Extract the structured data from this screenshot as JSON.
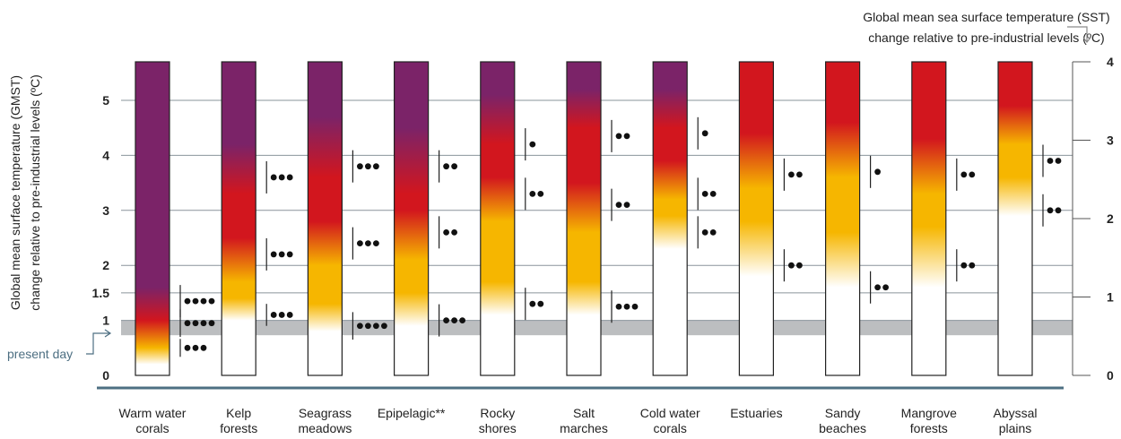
{
  "chart_data": {
    "type": "burning-ember",
    "title": "",
    "ylabel_left": [
      "Global mean surface temperature (GMST)",
      "change relative to pre-industrial levels (ºC)"
    ],
    "ylabel_right": [
      "Global mean sea surface temperature (SST)",
      "change relative to pre-industrial levels (ºC)"
    ],
    "left_ticks": [
      "0",
      "1",
      "1.5",
      "2",
      "3",
      "4",
      "5"
    ],
    "left_tick_values": [
      0,
      1,
      1.5,
      2,
      3,
      4,
      5
    ],
    "right_ticks": [
      "0",
      "1",
      "2",
      "3",
      "4"
    ],
    "right_tick_values": [
      0,
      1,
      2,
      3,
      4
    ],
    "present_day_label": "present day",
    "present_day_gmst_range": [
      0.73,
      1.0
    ],
    "ylim_gmst": [
      0,
      5.7
    ],
    "risk_colors": {
      "undetectable": "#ffffff",
      "moderate": "#f6b600",
      "high": "#d2161e",
      "very_high": "#7b2368"
    },
    "categories": [
      {
        "label": [
          "Warm water",
          "corals"
        ],
        "transitions": [
          {
            "from": "undetectable",
            "to": "moderate",
            "start": 0.2,
            "end": 0.5,
            "confidence": 3,
            "conf_gmst": 0.5
          },
          {
            "from": "moderate",
            "to": "high",
            "start": 0.5,
            "end": 1.0,
            "confidence": 4,
            "conf_gmst": 0.95
          },
          {
            "from": "high",
            "to": "very_high",
            "start": 1.0,
            "end": 1.6,
            "confidence": 4,
            "conf_gmst": 1.35
          }
        ]
      },
      {
        "label": [
          "Kelp",
          "forests"
        ],
        "transitions": [
          {
            "from": "undetectable",
            "to": "moderate",
            "start": 1.0,
            "end": 1.4,
            "confidence": 3,
            "conf_gmst": 1.1
          },
          {
            "from": "moderate",
            "to": "high",
            "start": 1.7,
            "end": 2.5,
            "confidence": 3,
            "conf_gmst": 2.2
          },
          {
            "from": "high",
            "to": "very_high",
            "start": 3.3,
            "end": 4.2,
            "confidence": 3,
            "conf_gmst": 3.6
          }
        ]
      },
      {
        "label": [
          "Seagrass",
          "meadows"
        ],
        "transitions": [
          {
            "from": "undetectable",
            "to": "moderate",
            "start": 0.8,
            "end": 1.3,
            "confidence": 4,
            "conf_gmst": 0.9
          },
          {
            "from": "moderate",
            "to": "high",
            "start": 2.0,
            "end": 2.8,
            "confidence": 3,
            "conf_gmst": 2.4
          },
          {
            "from": "high",
            "to": "very_high",
            "start": 3.6,
            "end": 4.7,
            "confidence": 3,
            "conf_gmst": 3.8
          }
        ]
      },
      {
        "label": [
          "Epipelagic**",
          ""
        ],
        "transitions": [
          {
            "from": "undetectable",
            "to": "moderate",
            "start": 0.9,
            "end": 1.5,
            "confidence": 3,
            "conf_gmst": 1.0
          },
          {
            "from": "moderate",
            "to": "high",
            "start": 2.1,
            "end": 3.0,
            "confidence": 2,
            "conf_gmst": 2.6
          },
          {
            "from": "high",
            "to": "very_high",
            "start": 3.3,
            "end": 4.5,
            "confidence": 2,
            "conf_gmst": 3.8
          }
        ]
      },
      {
        "label": [
          "Rocky",
          "shores"
        ],
        "transitions": [
          {
            "from": "undetectable",
            "to": "moderate",
            "start": 1.1,
            "end": 1.7,
            "confidence": 2,
            "conf_gmst": 1.3
          },
          {
            "from": "moderate",
            "to": "high",
            "start": 2.8,
            "end": 3.6,
            "confidence": 2,
            "conf_gmst": 3.3
          },
          {
            "from": "high",
            "to": "very_high",
            "start": 4.2,
            "end": 5.1,
            "confidence": 1,
            "conf_gmst": 4.2
          }
        ]
      },
      {
        "label": [
          "Salt",
          "marches"
        ],
        "transitions": [
          {
            "from": "undetectable",
            "to": "moderate",
            "start": 1.1,
            "end": 1.7,
            "confidence": 3,
            "conf_gmst": 1.25
          },
          {
            "from": "moderate",
            "to": "high",
            "start": 2.6,
            "end": 3.5,
            "confidence": 2,
            "conf_gmst": 3.1
          },
          {
            "from": "high",
            "to": "very_high",
            "start": 4.5,
            "end": 5.2,
            "confidence": 2,
            "conf_gmst": 4.35
          }
        ]
      },
      {
        "label": [
          "Cold water",
          "corals"
        ],
        "transitions": [
          {
            "from": "undetectable",
            "to": "moderate",
            "start": 2.3,
            "end": 2.9,
            "confidence": 2,
            "conf_gmst": 2.6
          },
          {
            "from": "moderate",
            "to": "high",
            "start": 3.2,
            "end": 3.9,
            "confidence": 2,
            "conf_gmst": 3.3
          },
          {
            "from": "high",
            "to": "very_high",
            "start": 4.5,
            "end": 5.2,
            "confidence": 1,
            "conf_gmst": 4.4
          }
        ]
      },
      {
        "label": [
          "Estuaries",
          ""
        ],
        "transitions": [
          {
            "from": "undetectable",
            "to": "moderate",
            "start": 1.8,
            "end": 2.8,
            "confidence": 2,
            "conf_gmst": 2.0
          },
          {
            "from": "moderate",
            "to": "high",
            "start": 3.4,
            "end": 4.4,
            "confidence": 2,
            "conf_gmst": 3.65
          }
        ]
      },
      {
        "label": [
          "Sandy",
          "beaches"
        ],
        "transitions": [
          {
            "from": "undetectable",
            "to": "moderate",
            "start": 1.6,
            "end": 2.6,
            "confidence": 2,
            "conf_gmst": 1.6
          },
          {
            "from": "moderate",
            "to": "high",
            "start": 3.6,
            "end": 4.6,
            "confidence": 1,
            "conf_gmst": 3.7
          }
        ]
      },
      {
        "label": [
          "Mangrove",
          "forests"
        ],
        "transitions": [
          {
            "from": "undetectable",
            "to": "moderate",
            "start": 1.6,
            "end": 2.7,
            "confidence": 2,
            "conf_gmst": 2.0
          },
          {
            "from": "moderate",
            "to": "high",
            "start": 3.3,
            "end": 4.3,
            "confidence": 2,
            "conf_gmst": 3.65
          }
        ]
      },
      {
        "label": [
          "Abyssal",
          "plains"
        ],
        "transitions": [
          {
            "from": "undetectable",
            "to": "moderate",
            "start": 2.9,
            "end": 3.6,
            "confidence": 2,
            "conf_gmst": 3.0
          },
          {
            "from": "moderate",
            "to": "high",
            "start": 4.2,
            "end": 4.9,
            "confidence": 2,
            "conf_gmst": 3.9
          }
        ]
      }
    ]
  }
}
